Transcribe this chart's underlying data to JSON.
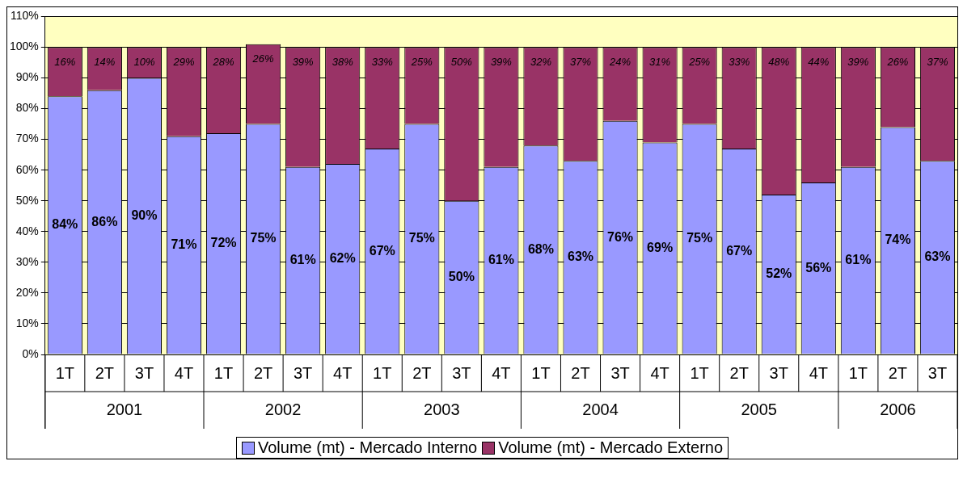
{
  "chart_data": {
    "type": "bar",
    "stacked": true,
    "categories": [
      "1T",
      "2T",
      "3T",
      "4T",
      "1T",
      "2T",
      "3T",
      "4T",
      "1T",
      "2T",
      "3T",
      "4T",
      "1T",
      "2T",
      "3T",
      "4T",
      "1T",
      "2T",
      "3T",
      "4T",
      "1T",
      "2T",
      "3T"
    ],
    "series": [
      {
        "name": "Volume (mt) - Mercado Interno",
        "color": "#9999ff",
        "values": [
          84,
          86,
          90,
          71,
          72,
          75,
          61,
          62,
          67,
          75,
          50,
          61,
          68,
          63,
          76,
          69,
          75,
          67,
          52,
          56,
          61,
          74,
          63
        ],
        "value_labels": [
          "84%",
          "86%",
          "90%",
          "71%",
          "72%",
          "75%",
          "61%",
          "62%",
          "67%",
          "75%",
          "50%",
          "61%",
          "68%",
          "63%",
          "76%",
          "69%",
          "75%",
          "67%",
          "52%",
          "56%",
          "61%",
          "74%",
          "63%"
        ]
      },
      {
        "name": "Volume (mt) - Mercado Externo",
        "color": "#993366",
        "values": [
          16,
          14,
          10,
          29,
          28,
          26,
          39,
          38,
          33,
          25,
          50,
          39,
          32,
          37,
          24,
          31,
          25,
          33,
          48,
          44,
          39,
          26,
          37
        ],
        "value_labels": [
          "16%",
          "14%",
          "10%",
          "29%",
          "28%",
          "26%",
          "39%",
          "38%",
          "33%",
          "25%",
          "50%",
          "39%",
          "32%",
          "37%",
          "24%",
          "31%",
          "25%",
          "33%",
          "48%",
          "44%",
          "39%",
          "26%",
          "37%"
        ]
      }
    ],
    "annotations": [
      "2001",
      "2002",
      "2003",
      "2004",
      "2005",
      "2006"
    ],
    "ylim": [
      0,
      110
    ],
    "yticks": [
      {
        "value": 0,
        "label": "0%"
      },
      {
        "value": 10,
        "label": "10%"
      },
      {
        "value": 20,
        "label": "20%"
      },
      {
        "value": 30,
        "label": "30%"
      },
      {
        "value": 40,
        "label": "40%"
      },
      {
        "value": 50,
        "label": "50%"
      },
      {
        "value": 60,
        "label": "60%"
      },
      {
        "value": 70,
        "label": "70%"
      },
      {
        "value": 80,
        "label": "80%"
      },
      {
        "value": 90,
        "label": "90%"
      },
      {
        "value": 100,
        "label": "100%"
      },
      {
        "value": 110,
        "label": "110%"
      }
    ],
    "grid": "y",
    "legend": "bottom"
  }
}
